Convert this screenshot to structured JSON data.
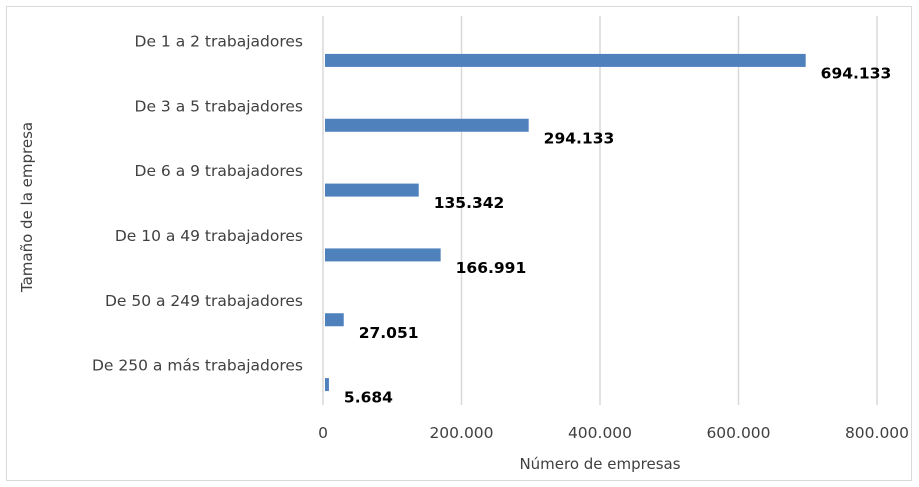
{
  "chart_data": {
    "type": "bar",
    "orientation": "horizontal",
    "categories": [
      "De 1 a 2 trabajadores",
      "De 3 a 5 trabajadores",
      "De 6 a 9 trabajadores",
      "De 10 a 49 trabajadores",
      "De 50 a 249 trabajadores",
      "De 250 a más trabajadores"
    ],
    "values": [
      694133,
      294133,
      135342,
      166991,
      27051,
      5684
    ],
    "data_labels": [
      "694.133",
      "294.133",
      "135.342",
      "166.991",
      "27.051",
      "5.684"
    ],
    "title": "",
    "xlabel": "Número de empresas",
    "ylabel": "Tamaño de la empresa",
    "xlim": [
      0,
      800000
    ],
    "x_ticks": [
      0,
      200000,
      400000,
      600000,
      800000
    ],
    "x_tick_labels": [
      "0",
      "200.000",
      "400.000",
      "600.000",
      "800.000"
    ],
    "grid": "vertical",
    "legend": "none",
    "colors": {
      "bar": "#4f81bd",
      "grid": "#d9d9d9",
      "border": "#d9d9d9",
      "text": "#404040"
    }
  }
}
